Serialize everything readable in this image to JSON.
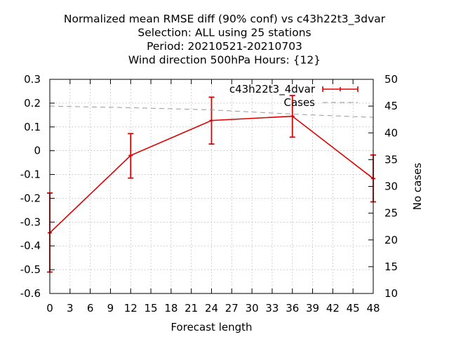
{
  "chart_data": {
    "type": "line",
    "title_lines": [
      "Normalized mean RMSE diff (90% conf) vs c43h22t3_3dvar",
      "Selection: ALL using     25 stations",
      "Period: 20210521-20210703",
      "Wind direction 500hPa   Hours: {12}"
    ],
    "xlabel": "Forecast length",
    "ylabel": "",
    "y2label": "No cases",
    "xlim": [
      0,
      48
    ],
    "ylim": [
      -0.6,
      0.3
    ],
    "y2lim": [
      10,
      50
    ],
    "x_ticks": [
      0,
      3,
      6,
      9,
      12,
      15,
      18,
      21,
      24,
      27,
      30,
      33,
      36,
      39,
      42,
      45,
      48
    ],
    "x_tick_labels": [
      "0",
      "3",
      "6",
      "9",
      "12",
      "15",
      "18",
      "21",
      "24",
      "27",
      "30",
      "33",
      "36",
      "39",
      "42",
      "45",
      "48"
    ],
    "y_ticks": [
      -0.6,
      -0.5,
      -0.4,
      -0.3,
      -0.2,
      -0.1,
      0,
      0.1,
      0.2,
      0.3
    ],
    "y_tick_labels": [
      "-0.6",
      "-0.5",
      "-0.4",
      "-0.3",
      "-0.2",
      "-0.1",
      "0",
      "0.1",
      "0.2",
      "0.3"
    ],
    "y2_ticks": [
      10,
      15,
      20,
      25,
      30,
      35,
      40,
      45,
      50
    ],
    "y2_tick_labels": [
      "10",
      "15",
      "20",
      "25",
      "30",
      "35",
      "40",
      "45",
      "50"
    ],
    "grid": true,
    "legend_position": "top-right",
    "series": [
      {
        "name": "c43h22t3_4dvar",
        "color": "#dd0000",
        "style": "line-errorbars",
        "axis": "y",
        "x": [
          0,
          12,
          24,
          36,
          48
        ],
        "y": [
          -0.345,
          -0.02,
          0.127,
          0.145,
          -0.117
        ],
        "err_low": [
          -0.51,
          -0.115,
          0.028,
          0.057,
          -0.215
        ],
        "err_high": [
          -0.178,
          0.072,
          0.225,
          0.232,
          -0.018
        ]
      },
      {
        "name": "Cases",
        "color": "#999999",
        "style": "dashed",
        "axis": "y2",
        "x": [
          0,
          12,
          24,
          36,
          48
        ],
        "y": [
          45.0,
          44.7,
          44.3,
          43.5,
          42.9
        ]
      }
    ]
  }
}
